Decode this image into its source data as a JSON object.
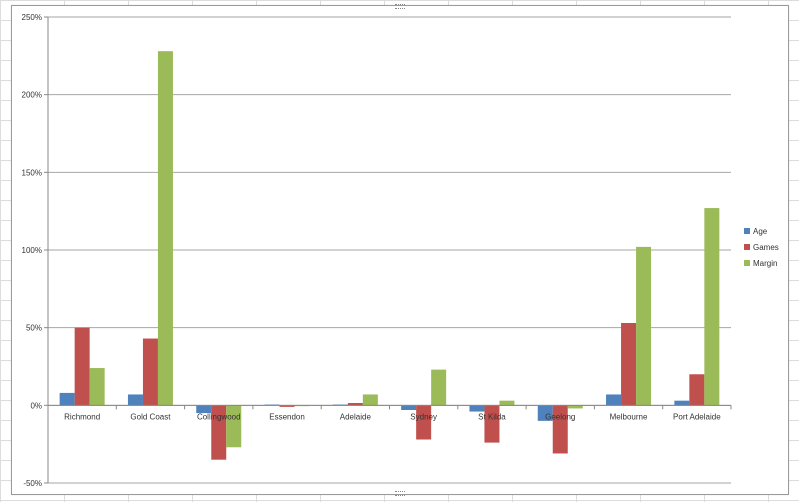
{
  "chart_data": {
    "type": "bar",
    "categories": [
      "Richmond",
      "Gold Coast",
      "Collingwood",
      "Essendon",
      "Adelaide",
      "Sydney",
      "St Kilda",
      "Geelong",
      "Melbourne",
      "Port Adelaide"
    ],
    "series": [
      {
        "name": "Age",
        "color": "#4f81bd",
        "values": [
          8,
          7,
          -5,
          0.5,
          0.5,
          -3,
          -4,
          -10,
          7,
          3
        ]
      },
      {
        "name": "Games",
        "color": "#c0504d",
        "values": [
          50,
          43,
          -35,
          -1,
          1.5,
          -22,
          -24,
          -31,
          53,
          20
        ]
      },
      {
        "name": "Margin",
        "color": "#9bbb59",
        "values": [
          24,
          228,
          -27,
          0,
          7,
          23,
          3,
          -2,
          102,
          127
        ]
      }
    ],
    "yticks": [
      "-50%",
      "0%",
      "50%",
      "100%",
      "150%",
      "200%",
      "250%"
    ],
    "ylim": [
      -50,
      250
    ],
    "y_unit": "%",
    "title": "",
    "xlabel": "",
    "ylabel": "",
    "grid": "horizontal",
    "legend": "right"
  }
}
